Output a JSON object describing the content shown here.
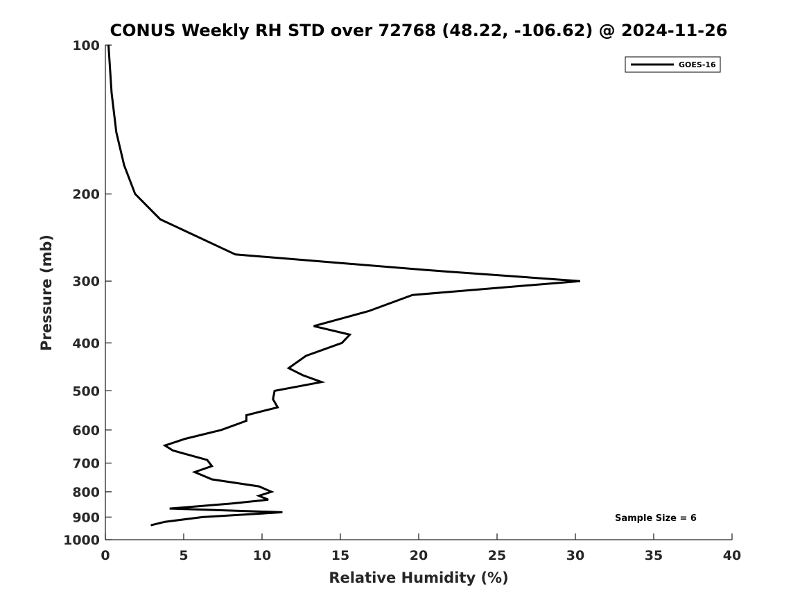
{
  "chart_data": {
    "type": "line",
    "title": "CONUS Weekly RH STD over 72768 (48.22, -106.62) @ 2024-11-26",
    "xlabel": "Relative Humidity (%)",
    "ylabel": "Pressure (mb)",
    "xlim": [
      0,
      40
    ],
    "ylim": [
      100,
      1000
    ],
    "y_scale": "log",
    "y_reversed": true,
    "grid": false,
    "legend_position": "top-right",
    "x_ticks": [
      0,
      5,
      10,
      15,
      20,
      25,
      30,
      35,
      40
    ],
    "y_ticks": [
      100,
      200,
      300,
      400,
      500,
      600,
      700,
      800,
      900,
      1000
    ],
    "annotation": "Sample Size = 6",
    "series": [
      {
        "name": "GOES-16",
        "color": "#000000",
        "points": [
          [
            0.2,
            100
          ],
          [
            0.4,
            125
          ],
          [
            0.7,
            150
          ],
          [
            1.2,
            175
          ],
          [
            1.9,
            200
          ],
          [
            3.5,
            225
          ],
          [
            8.3,
            265
          ],
          [
            20.5,
            285
          ],
          [
            30.3,
            300
          ],
          [
            19.6,
            320
          ],
          [
            16.8,
            345
          ],
          [
            13.3,
            370
          ],
          [
            15.6,
            385
          ],
          [
            15.1,
            400
          ],
          [
            12.8,
            425
          ],
          [
            11.7,
            450
          ],
          [
            12.6,
            465
          ],
          [
            13.8,
            480
          ],
          [
            10.8,
            500
          ],
          [
            10.7,
            520
          ],
          [
            11.0,
            540
          ],
          [
            9.0,
            560
          ],
          [
            9.0,
            575
          ],
          [
            7.4,
            600
          ],
          [
            5.1,
            625
          ],
          [
            3.8,
            645
          ],
          [
            4.3,
            660
          ],
          [
            6.5,
            690
          ],
          [
            6.8,
            710
          ],
          [
            5.7,
            730
          ],
          [
            6.8,
            755
          ],
          [
            9.8,
            780
          ],
          [
            10.6,
            800
          ],
          [
            9.8,
            815
          ],
          [
            10.4,
            830
          ],
          [
            8.1,
            845
          ],
          [
            4.1,
            865
          ],
          [
            11.3,
            880
          ],
          [
            6.2,
            900
          ],
          [
            3.8,
            920
          ],
          [
            2.9,
            935
          ]
        ]
      }
    ]
  }
}
